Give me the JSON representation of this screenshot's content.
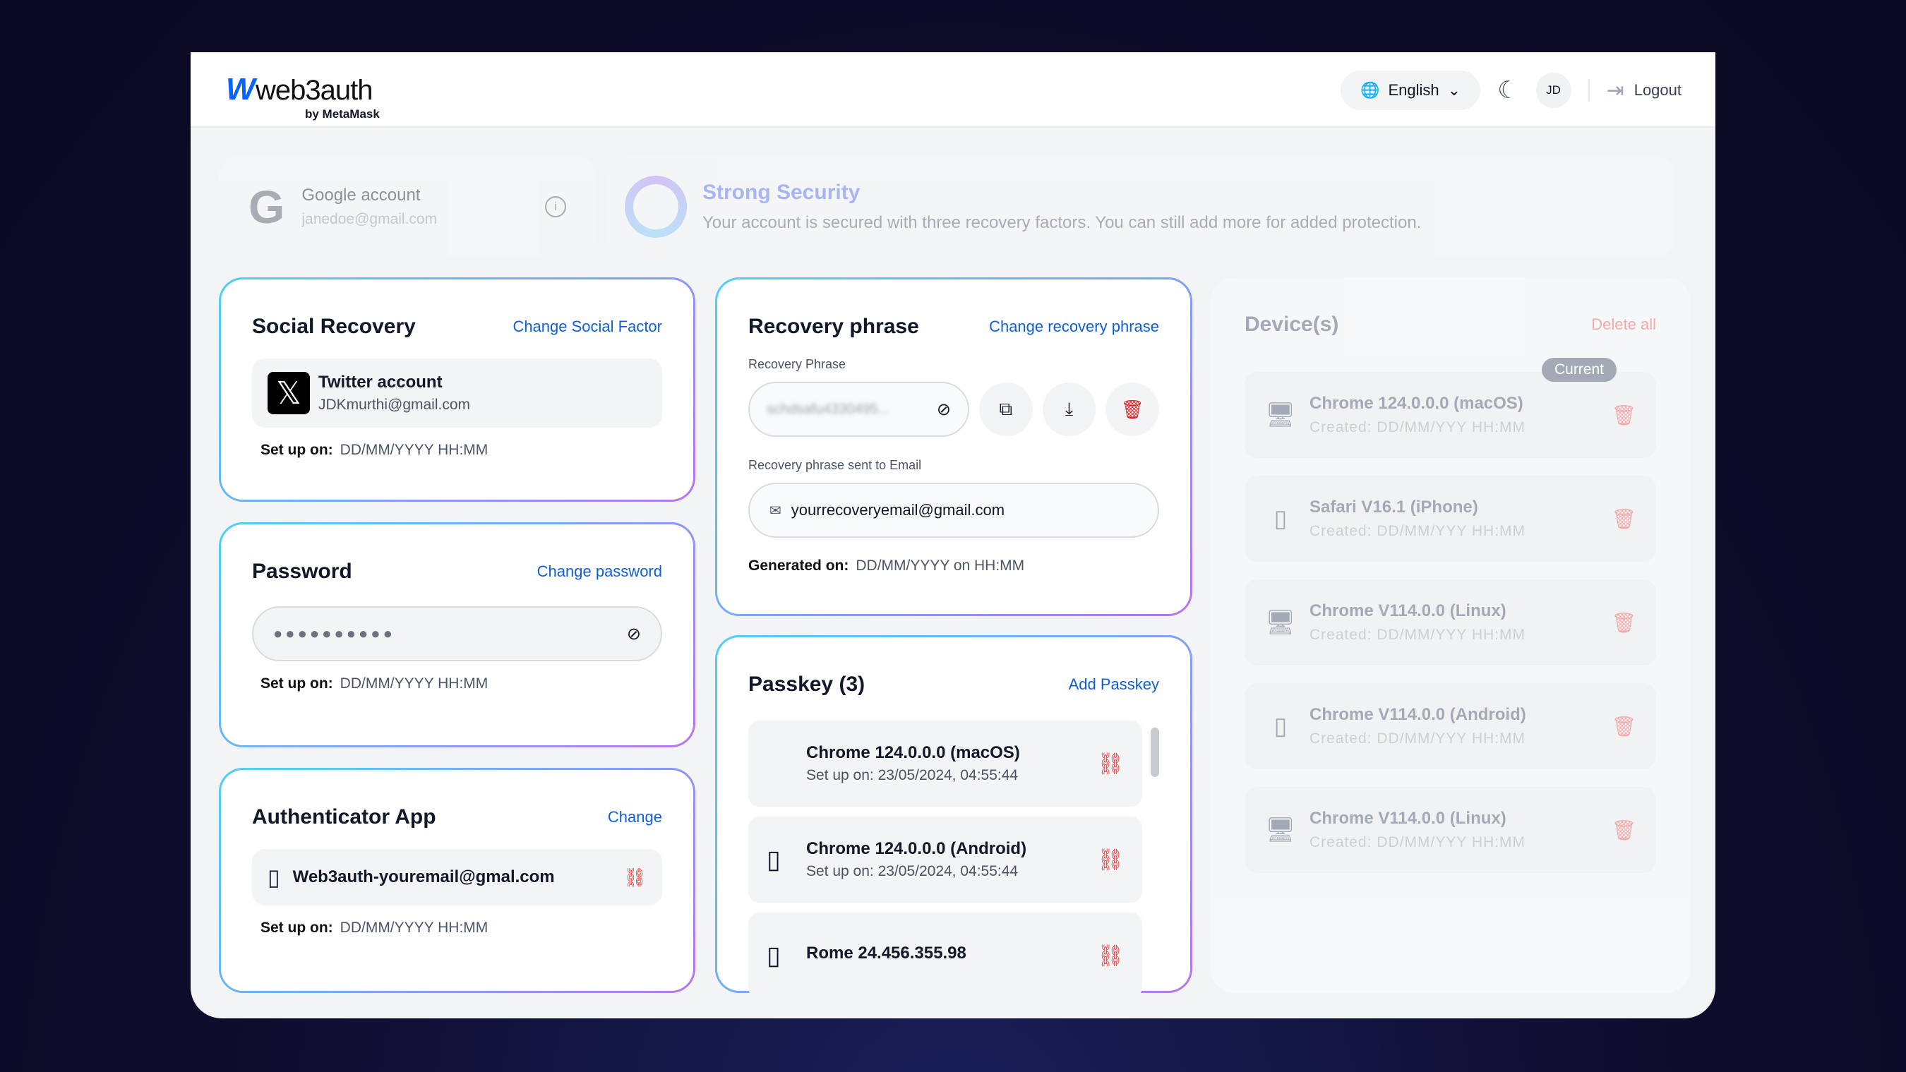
{
  "header": {
    "logo_mark": "W",
    "logo_name": "web3auth",
    "logo_by": "by MetaMask",
    "language": "English",
    "avatar": "JD",
    "logout": "Logout"
  },
  "google": {
    "title": "Google account",
    "email": "janedoe@gmail.com"
  },
  "security": {
    "title": "Strong Security",
    "message": "Your account is secured with three recovery factors. You can still add more for added protection."
  },
  "social": {
    "title": "Social Recovery",
    "action": "Change Social Factor",
    "account": "Twitter account",
    "email": "JDKmurthi@gmail.com",
    "setup_label": "Set up on:",
    "setup_value": "DD/MM/YYYY HH:MM"
  },
  "password": {
    "title": "Password",
    "action": "Change password",
    "masked": "●●●●●●●●●●",
    "setup_label": "Set up on:",
    "setup_value": "DD/MM/YYYY HH:MM"
  },
  "authenticator": {
    "title": "Authenticator App",
    "action": "Change",
    "account": "Web3auth-youremail@gmal.com",
    "setup_label": "Set up on:",
    "setup_value": "DD/MM/YYYY HH:MM"
  },
  "recovery": {
    "title": "Recovery phrase",
    "action": "Change recovery phrase",
    "phrase_label": "Recovery Phrase",
    "phrase_blurred": "schdsafu4330495...",
    "email_label": "Recovery phrase sent to Email",
    "email": "yourrecoveryemail@gmail.com",
    "generated_label": "Generated on:",
    "generated_value": "DD/MM/YYYY on HH:MM"
  },
  "passkey": {
    "title": "Passkey (3)",
    "action": "Add Passkey",
    "items": [
      {
        "name": "Chrome 124.0.0.0 (macOS)",
        "setup": "Set up on: 23/05/2024, 04:55:44",
        "icon": "apple-icon"
      },
      {
        "name": "Chrome 124.0.0.0 (Android)",
        "setup": "Set up on: 23/05/2024, 04:55:44",
        "icon": "phone-icon"
      },
      {
        "name": "Rome 24.456.355.98",
        "setup": "",
        "icon": "phone-icon"
      }
    ]
  },
  "devices": {
    "title": "Device(s)",
    "action": "Delete all",
    "current_badge": "Current",
    "items": [
      {
        "name": "Chrome 124.0.0.0 (macOS)",
        "created": "Created: DD/MM/YYY HH:MM",
        "icon": "desktop-icon"
      },
      {
        "name": "Safari V16.1 (iPhone)",
        "created": "Created: DD/MM/YYY HH:MM",
        "icon": "phone-icon"
      },
      {
        "name": "Chrome V114.0.0 (Linux)",
        "created": "Created: DD/MM/YYY HH:MM",
        "icon": "desktop-icon"
      },
      {
        "name": "Chrome V114.0.0 (Android)",
        "created": "Created: DD/MM/YYY HH:MM",
        "icon": "phone-icon"
      },
      {
        "name": "Chrome V114.0.0 (Linux)",
        "created": "Created: DD/MM/YYY HH:MM",
        "icon": "desktop-icon"
      }
    ]
  },
  "colors": {
    "accent": "#0e5fd8",
    "danger": "#ef4444",
    "brand": "#0364ff"
  }
}
